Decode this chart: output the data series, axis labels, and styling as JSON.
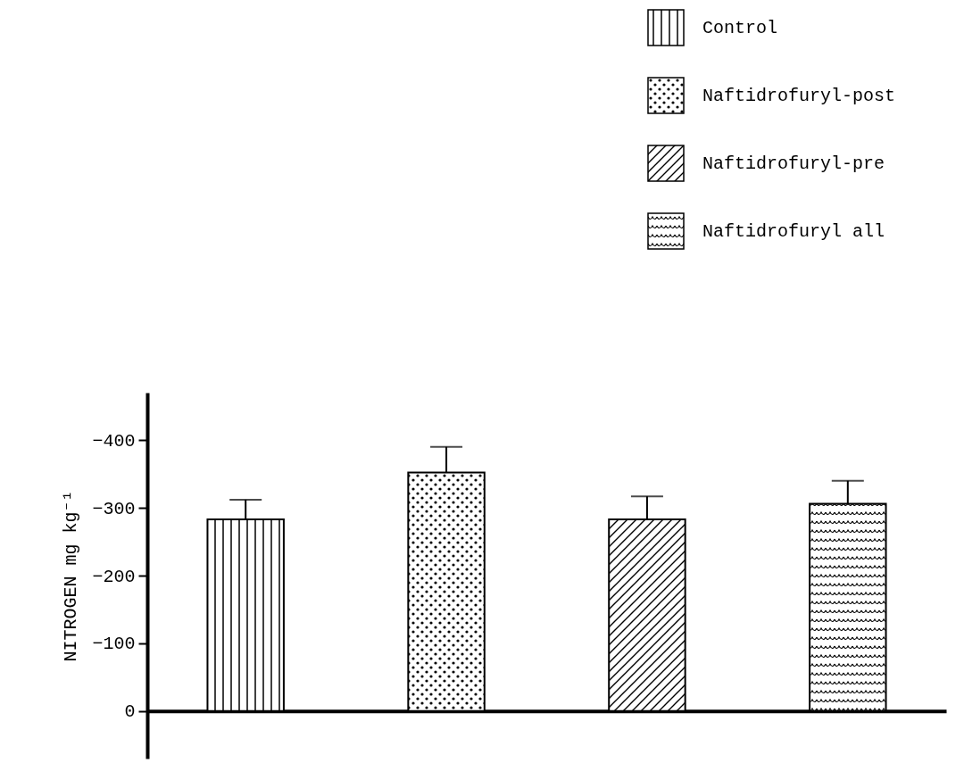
{
  "chart_data": {
    "type": "bar",
    "ylabel": "NITROGEN mg kg⁻¹",
    "categories": [
      null,
      null,
      null,
      null
    ],
    "series": [
      {
        "name": "Control",
        "color": "#000000",
        "values": [
          -283,
          null,
          null,
          null
        ],
        "errors": [
          29,
          null,
          null,
          null
        ]
      },
      {
        "name": "Naftidrofuryl-post",
        "color": "#000000",
        "values": [
          null,
          -352,
          null,
          null
        ],
        "errors": [
          null,
          38,
          null,
          null
        ]
      },
      {
        "name": "Naftidrofuryl-pre",
        "color": "#000000",
        "values": [
          null,
          null,
          -283,
          null
        ],
        "errors": [
          null,
          null,
          34,
          null
        ]
      },
      {
        "name": "Naftidrofuryl all",
        "color": "#000000",
        "values": [
          null,
          null,
          null,
          -306
        ],
        "errors": [
          null,
          null,
          null,
          34
        ]
      }
    ],
    "ylim": [
      70,
      -470
    ],
    "yticks": [
      -400,
      -300,
      -200,
      -100,
      0
    ],
    "legend": "top right"
  }
}
